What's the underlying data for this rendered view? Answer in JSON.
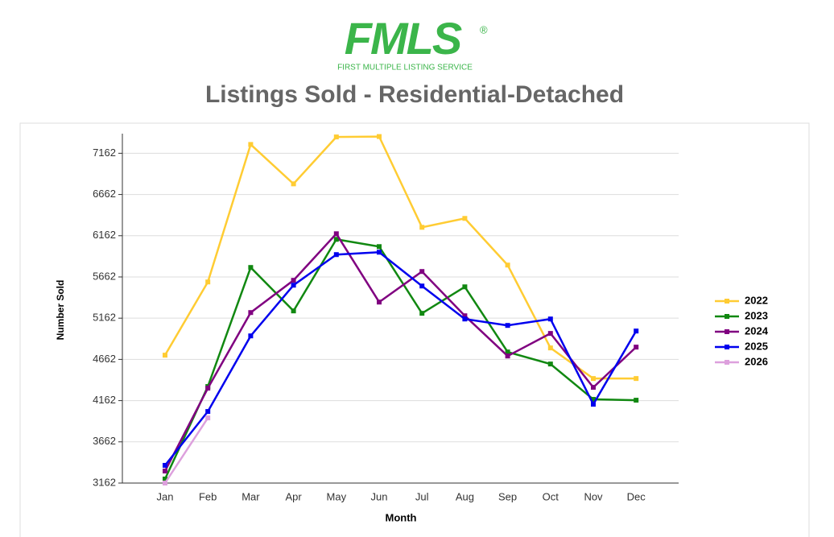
{
  "header": {
    "logo": "FMLS",
    "registered": "®",
    "tagline": "FIRST MULTIPLE LISTING SERVICE"
  },
  "chart_data": {
    "type": "line",
    "title": "Listings Sold - Residential-Detached",
    "x_label": "Month",
    "y_label": "Number Sold",
    "categories": [
      "Jan",
      "Feb",
      "Mar",
      "Apr",
      "May",
      "Jun",
      "Jul",
      "Aug",
      "Sep",
      "Oct",
      "Nov",
      "Dec"
    ],
    "ylim": [
      3162,
      7400
    ],
    "yticks": [
      3162,
      3662,
      4162,
      4662,
      5162,
      5662,
      6162,
      6662,
      7162
    ],
    "grid": true,
    "legend": "right",
    "series": [
      {
        "name": "2022",
        "color": "#ffcc33",
        "values": [
          4713,
          5601,
          7269,
          6791,
          7360,
          7365,
          6264,
          6372,
          5806,
          4801,
          4430,
          4430
        ]
      },
      {
        "name": "2023",
        "color": "#118811",
        "values": [
          3211,
          4333,
          5777,
          5250,
          6118,
          6030,
          5221,
          5542,
          4752,
          4606,
          4177,
          4167
        ]
      },
      {
        "name": "2024",
        "color": "#800080",
        "values": [
          3308,
          4313,
          5230,
          5621,
          6186,
          5357,
          5728,
          5191,
          4703,
          4977,
          4323,
          4811
        ]
      },
      {
        "name": "2025",
        "color": "#0000ee",
        "values": [
          3377,
          4030,
          4947,
          5562,
          5933,
          5962,
          5552,
          5152,
          5074,
          5152,
          4118,
          5006
        ]
      },
      {
        "name": "2026",
        "color": "#dda0dd",
        "values": [
          3162,
          3952,
          null,
          null,
          null,
          null,
          null,
          null,
          null,
          null,
          null,
          null
        ]
      }
    ]
  }
}
